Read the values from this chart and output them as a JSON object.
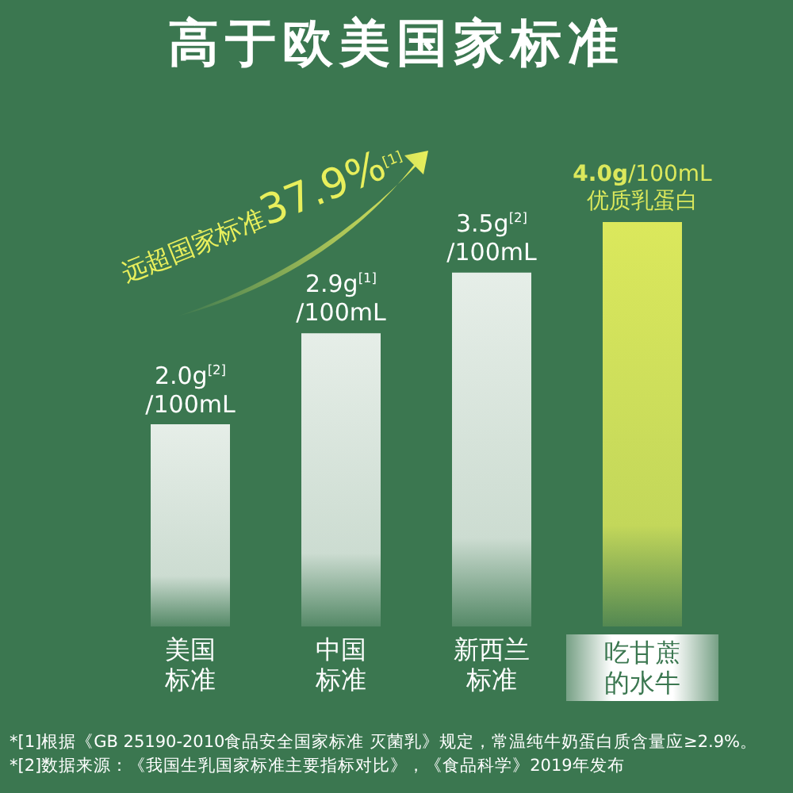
{
  "chart_data": {
    "type": "bar",
    "title": "高于欧美国家标准",
    "categories": [
      "美国标准",
      "中国标准",
      "新西兰标准",
      "吃甘蔗的水牛"
    ],
    "values": [
      2.0,
      2.9,
      3.5,
      4.0
    ],
    "colors": [
      "#e6eee8",
      "#e6eee8",
      "#e6eee8",
      "#dbe85c"
    ],
    "value_labels": [
      "2.0g$^{[2]}$ /100mL",
      "2.9g$^{[1]}$ /100mL",
      "3.5g$^{[2]}$ /100mL",
      "**4.0g**/100mL 优质乳蛋白"
    ],
    "annotations": [
      "远超国家标准37.9%$^{[1]}$",
      "*[1]根据《GB 25190-2010食品安全国家标准 灭菌乳》规定，常温纯牛奶蛋白质含量应≥2.9%。",
      "*[2]数据来源：《我国生乳国家标准主要指标对比》，《食品科学》2019年发布"
    ]
  }
}
